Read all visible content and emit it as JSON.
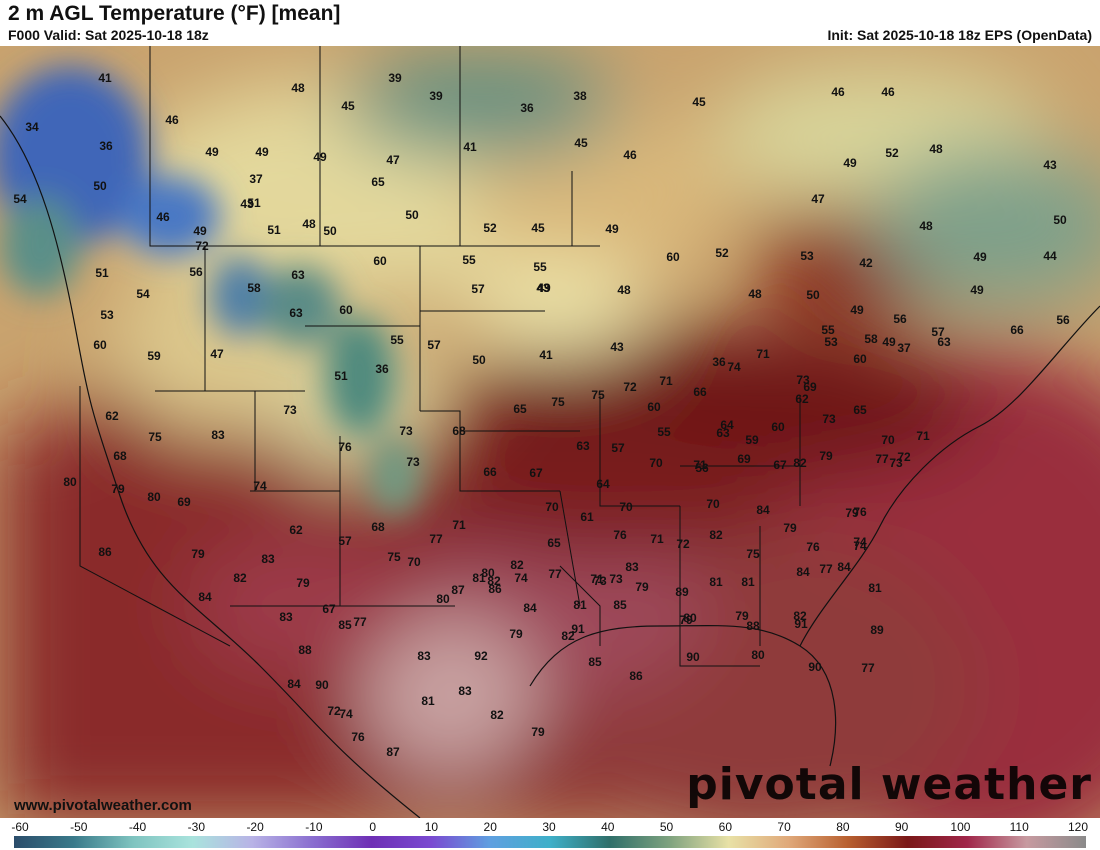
{
  "header": {
    "title": "2 m AGL Temperature (°F) [mean]",
    "valid": "F000 Valid: Sat 2025-10-18 18z",
    "init": "Init: Sat 2025-10-18 18z EPS (OpenData)"
  },
  "map": {
    "website": "www.pivotalweather.com",
    "watermark": "pivotal weather",
    "temperature_labels": [
      "41",
      "39",
      "48",
      "39",
      "38",
      "36",
      "45",
      "45",
      "46",
      "34",
      "46",
      "36",
      "46",
      "49",
      "49",
      "49",
      "41",
      "45",
      "46",
      "52",
      "48",
      "43",
      "50",
      "37",
      "47",
      "49",
      "54",
      "46",
      "43",
      "47",
      "65",
      "51",
      "49",
      "50",
      "50",
      "52",
      "45",
      "49",
      "48",
      "50",
      "51",
      "48",
      "51",
      "54",
      "60",
      "55",
      "55",
      "60",
      "52",
      "53",
      "42",
      "49",
      "44",
      "43",
      "49",
      "53",
      "56",
      "58",
      "63",
      "57",
      "49",
      "48",
      "48",
      "50",
      "56",
      "60",
      "72",
      "63",
      "60",
      "55",
      "57",
      "50",
      "41",
      "43",
      "49",
      "49",
      "57",
      "63",
      "66",
      "56",
      "59",
      "47",
      "51",
      "36",
      "36",
      "74",
      "71",
      "73",
      "69",
      "60",
      "58",
      "55",
      "53",
      "37",
      "62",
      "73",
      "74",
      "75",
      "75",
      "72",
      "71",
      "66",
      "60",
      "64",
      "60",
      "62",
      "65",
      "71",
      "75",
      "83",
      "76",
      "73",
      "68",
      "65",
      "63",
      "57",
      "55",
      "56",
      "63",
      "59",
      "73",
      "70",
      "72",
      "68",
      "80",
      "79",
      "80",
      "73",
      "66",
      "67",
      "64",
      "70",
      "71",
      "69",
      "67",
      "82",
      "79",
      "77",
      "73",
      "69",
      "62",
      "57",
      "68",
      "70",
      "61",
      "70",
      "71",
      "70",
      "84",
      "79",
      "79",
      "76",
      "74",
      "71",
      "77",
      "70",
      "81",
      "82",
      "80",
      "77",
      "76",
      "72",
      "82",
      "75",
      "76",
      "77",
      "74",
      "86",
      "84",
      "83",
      "79",
      "77",
      "75",
      "80",
      "82",
      "74",
      "65",
      "71",
      "79",
      "81",
      "81",
      "84",
      "84",
      "79",
      "82",
      "67",
      "85",
      "87",
      "86",
      "81",
      "73",
      "73",
      "83",
      "89",
      "79",
      "79",
      "88",
      "82",
      "81",
      "83",
      "88",
      "90",
      "84",
      "91",
      "85",
      "80",
      "91",
      "89",
      "77",
      "83",
      "92",
      "79",
      "82",
      "85",
      "86",
      "90",
      "80",
      "90",
      "84",
      "72",
      "74",
      "76",
      "87",
      "81",
      "83",
      "82",
      "79"
    ]
  },
  "colorbar": {
    "ticks": [
      "-60",
      "-50",
      "-40",
      "-30",
      "-20",
      "-10",
      "0",
      "10",
      "20",
      "30",
      "40",
      "50",
      "60",
      "70",
      "80",
      "90",
      "100",
      "110",
      "120"
    ],
    "stops": [
      "#2b4d6b",
      "#3a7a8a",
      "#7fc4c0",
      "#a9e3dd",
      "#b8b3e6",
      "#8a6fd0",
      "#6e2fb5",
      "#7a4ad1",
      "#5fa0e0",
      "#3fb0c9",
      "#2f6f6a",
      "#7ea27f",
      "#e8e1a6",
      "#e0a97a",
      "#b86030",
      "#7a1818",
      "#a0264a",
      "#c79aa0",
      "#8a8a8a"
    ]
  }
}
